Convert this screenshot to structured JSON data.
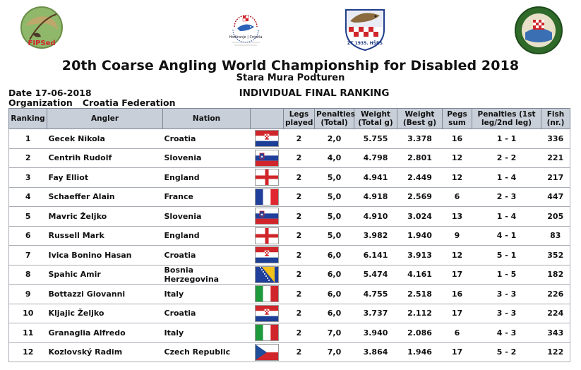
{
  "logos": {
    "fipsed_text": "FIPSed",
    "croatia_badge_text": "ZT 1935. HŠRS",
    "event_text": "Hodiranje | Croatia"
  },
  "header": {
    "title": "20th Coarse Angling World Championship for Disabled 2018",
    "subtitle": "Stara Mura Podturen",
    "section": "INDIVIDUAL FINAL RANKING",
    "date_label": "Date",
    "date_value": "17-06-2018",
    "org_label": "Organization",
    "org_value": "Croatia Federation"
  },
  "table": {
    "columns": {
      "ranking": "Ranking",
      "angler": "Angler",
      "nation": "Nation",
      "flag": "",
      "legs": "Legs played",
      "penalties_total": "Penalties (Total)",
      "weight_total": "Weight (Total g)",
      "weight_best": "Weight (Best g)",
      "pegs": "Pegs sum",
      "penalties_legs": "Penalties (1st leg/2nd leg)",
      "fish": "Fish (nr.)"
    },
    "rows": [
      {
        "rank": "1",
        "angler": "Gecek Nikola",
        "nation": "Croatia",
        "flag": "croatia",
        "legs": "2",
        "pen": "2,0",
        "wt": "5.755",
        "wb": "3.378",
        "pegs": "16",
        "pl": "1 - 1",
        "fish": "336"
      },
      {
        "rank": "2",
        "angler": "Centrih Rudolf",
        "nation": "Slovenia",
        "flag": "slovenia",
        "legs": "2",
        "pen": "4,0",
        "wt": "4.798",
        "wb": "2.801",
        "pegs": "12",
        "pl": "2 - 2",
        "fish": "221"
      },
      {
        "rank": "3",
        "angler": "Fay Elliot",
        "nation": "England",
        "flag": "england",
        "legs": "2",
        "pen": "5,0",
        "wt": "4.941",
        "wb": "2.449",
        "pegs": "12",
        "pl": "1 - 4",
        "fish": "217"
      },
      {
        "rank": "4",
        "angler": "Schaeffer Alain",
        "nation": "France",
        "flag": "france",
        "legs": "2",
        "pen": "5,0",
        "wt": "4.918",
        "wb": "2.569",
        "pegs": "6",
        "pl": "2 - 3",
        "fish": "447"
      },
      {
        "rank": "5",
        "angler": "Mavric Željko",
        "nation": "Slovenia",
        "flag": "slovenia",
        "legs": "2",
        "pen": "5,0",
        "wt": "4.910",
        "wb": "3.024",
        "pegs": "13",
        "pl": "1 - 4",
        "fish": "205"
      },
      {
        "rank": "6",
        "angler": "Russell  Mark",
        "nation": "England",
        "flag": "england",
        "legs": "2",
        "pen": "5,0",
        "wt": "3.982",
        "wb": "1.940",
        "pegs": "9",
        "pl": "4 - 1",
        "fish": "83"
      },
      {
        "rank": "7",
        "angler": "Ivica Bonino Hasan",
        "nation": "Croatia",
        "flag": "croatia",
        "legs": "2",
        "pen": "6,0",
        "wt": "6.141",
        "wb": "3.913",
        "pegs": "12",
        "pl": "5 - 1",
        "fish": "352"
      },
      {
        "rank": "8",
        "angler": "Spahic Amir",
        "nation": "Bosnia Herzegovina",
        "flag": "bosnia",
        "legs": "2",
        "pen": "6,0",
        "wt": "5.474",
        "wb": "4.161",
        "pegs": "17",
        "pl": "1 - 5",
        "fish": "182"
      },
      {
        "rank": "9",
        "angler": "Bottazzi Giovanni",
        "nation": "Italy",
        "flag": "italy",
        "legs": "2",
        "pen": "6,0",
        "wt": "4.755",
        "wb": "2.518",
        "pegs": "16",
        "pl": "3 - 3",
        "fish": "226"
      },
      {
        "rank": "10",
        "angler": "Kljajic Željko",
        "nation": "Croatia",
        "flag": "croatia",
        "legs": "2",
        "pen": "6,0",
        "wt": "3.737",
        "wb": "2.112",
        "pegs": "17",
        "pl": "3 - 3",
        "fish": "224"
      },
      {
        "rank": "11",
        "angler": "Granaglia Alfredo",
        "nation": "Italy",
        "flag": "italy",
        "legs": "2",
        "pen": "7,0",
        "wt": "3.940",
        "wb": "2.086",
        "pegs": "6",
        "pl": "4 - 3",
        "fish": "343"
      },
      {
        "rank": "12",
        "angler": "Kozlovský Radim",
        "nation": "Czech Republic",
        "flag": "czech",
        "legs": "2",
        "pen": "7,0",
        "wt": "3.864",
        "wb": "1.946",
        "pegs": "17",
        "pl": "5 - 2",
        "fish": "122"
      }
    ]
  }
}
